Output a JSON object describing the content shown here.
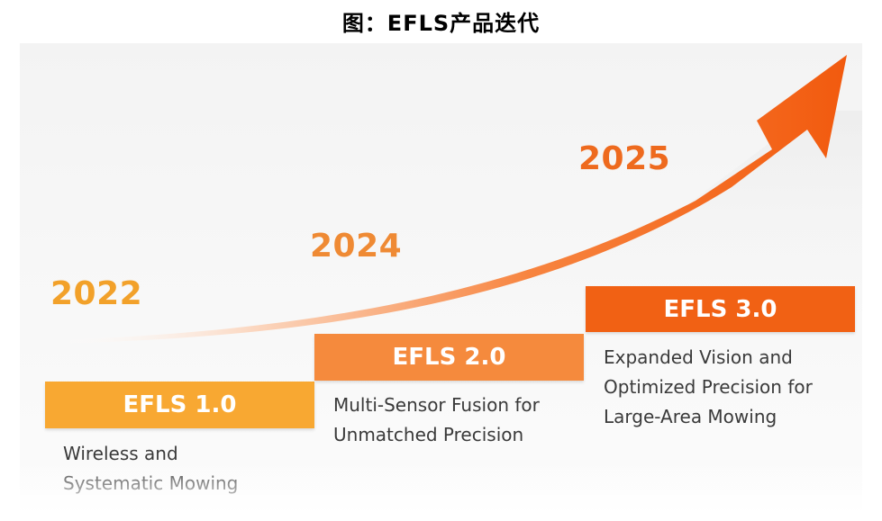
{
  "title": "图：EFLS产品迭代",
  "years": [
    "2022",
    "2024",
    "2025"
  ],
  "stages": [
    {
      "label": "EFLS 1.0",
      "description": "Wireless and\nSystematic Mowing",
      "color": "#f8a832"
    },
    {
      "label": "EFLS 2.0",
      "description": "Multi-Sensor Fusion for\nUnmatched Precision",
      "color": "#f58a3d"
    },
    {
      "label": "EFLS 3.0",
      "description": "Expanded Vision and\nOptimized Precision for\nLarge-Area Mowing",
      "color": "#f16114"
    }
  ],
  "colors": {
    "arrow_start": "#ffffff",
    "arrow_end": "#f25a0e"
  },
  "icons": {
    "arrow": "growth-arrow-icon"
  }
}
